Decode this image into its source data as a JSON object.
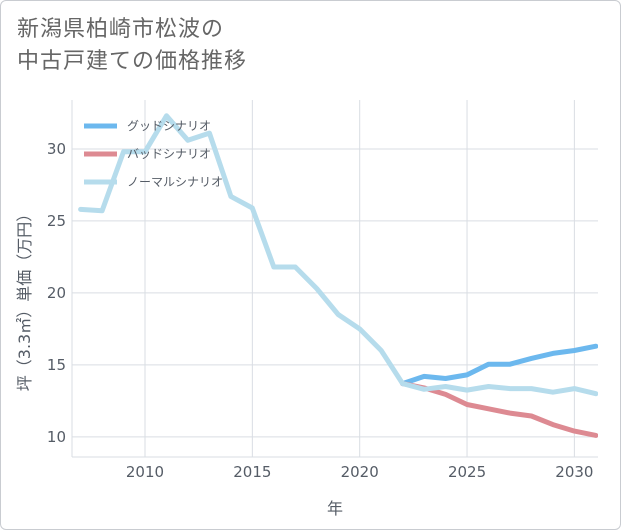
{
  "header": {
    "title_line1": "新潟県柏崎市松波の",
    "title_line2": "中古戸建ての価格推移"
  },
  "colors": {
    "good": "#6cb8ee",
    "bad": "#dd8a92",
    "normal": "#b6dcec",
    "grid": "#d9dde3",
    "axis_text": "#555c66"
  },
  "chart_data": {
    "type": "line",
    "title": "新潟県柏崎市松波の中古戸建ての価格推移",
    "xlabel": "年",
    "ylabel": "坪（3.3㎡）単価（万円）",
    "xlim": [
      2006.6,
      2031.1
    ],
    "ylim": [
      8.6,
      33.4
    ],
    "x_ticks": [
      2010,
      2015,
      2020,
      2025,
      2030
    ],
    "y_ticks": [
      10,
      15,
      20,
      25,
      30
    ],
    "grid": true,
    "legend_position": "top-left",
    "series": [
      {
        "name": "グッドシナリオ",
        "color": "#6cb8ee",
        "x": [
          2022,
          2023,
          2024,
          2025,
          2026,
          2027,
          2028,
          2029,
          2030,
          2031
        ],
        "values": [
          13.7,
          14.2,
          14.05,
          14.3,
          15.05,
          15.05,
          15.45,
          15.8,
          16.0,
          16.3
        ]
      },
      {
        "name": "バッドシナリオ",
        "color": "#dd8a92",
        "x": [
          2022,
          2023,
          2024,
          2025,
          2026,
          2027,
          2028,
          2029,
          2030,
          2031
        ],
        "values": [
          13.7,
          13.4,
          12.95,
          12.25,
          11.95,
          11.65,
          11.45,
          10.85,
          10.4,
          10.1
        ]
      },
      {
        "name": "ノーマルシナリオ",
        "color": "#b6dcec",
        "x": [
          2007,
          2008,
          2009,
          2010,
          2011,
          2012,
          2013,
          2014,
          2015,
          2016,
          2017,
          2018,
          2019,
          2020,
          2021,
          2022,
          2023,
          2024,
          2025,
          2026,
          2027,
          2028,
          2029,
          2030,
          2031
        ],
        "values": [
          25.8,
          25.7,
          29.8,
          29.8,
          32.3,
          30.6,
          31.1,
          26.7,
          25.9,
          21.8,
          21.8,
          20.3,
          18.5,
          17.5,
          16.0,
          13.7,
          13.3,
          13.5,
          13.25,
          13.5,
          13.35,
          13.35,
          13.1,
          13.35,
          13.0
        ]
      }
    ]
  }
}
